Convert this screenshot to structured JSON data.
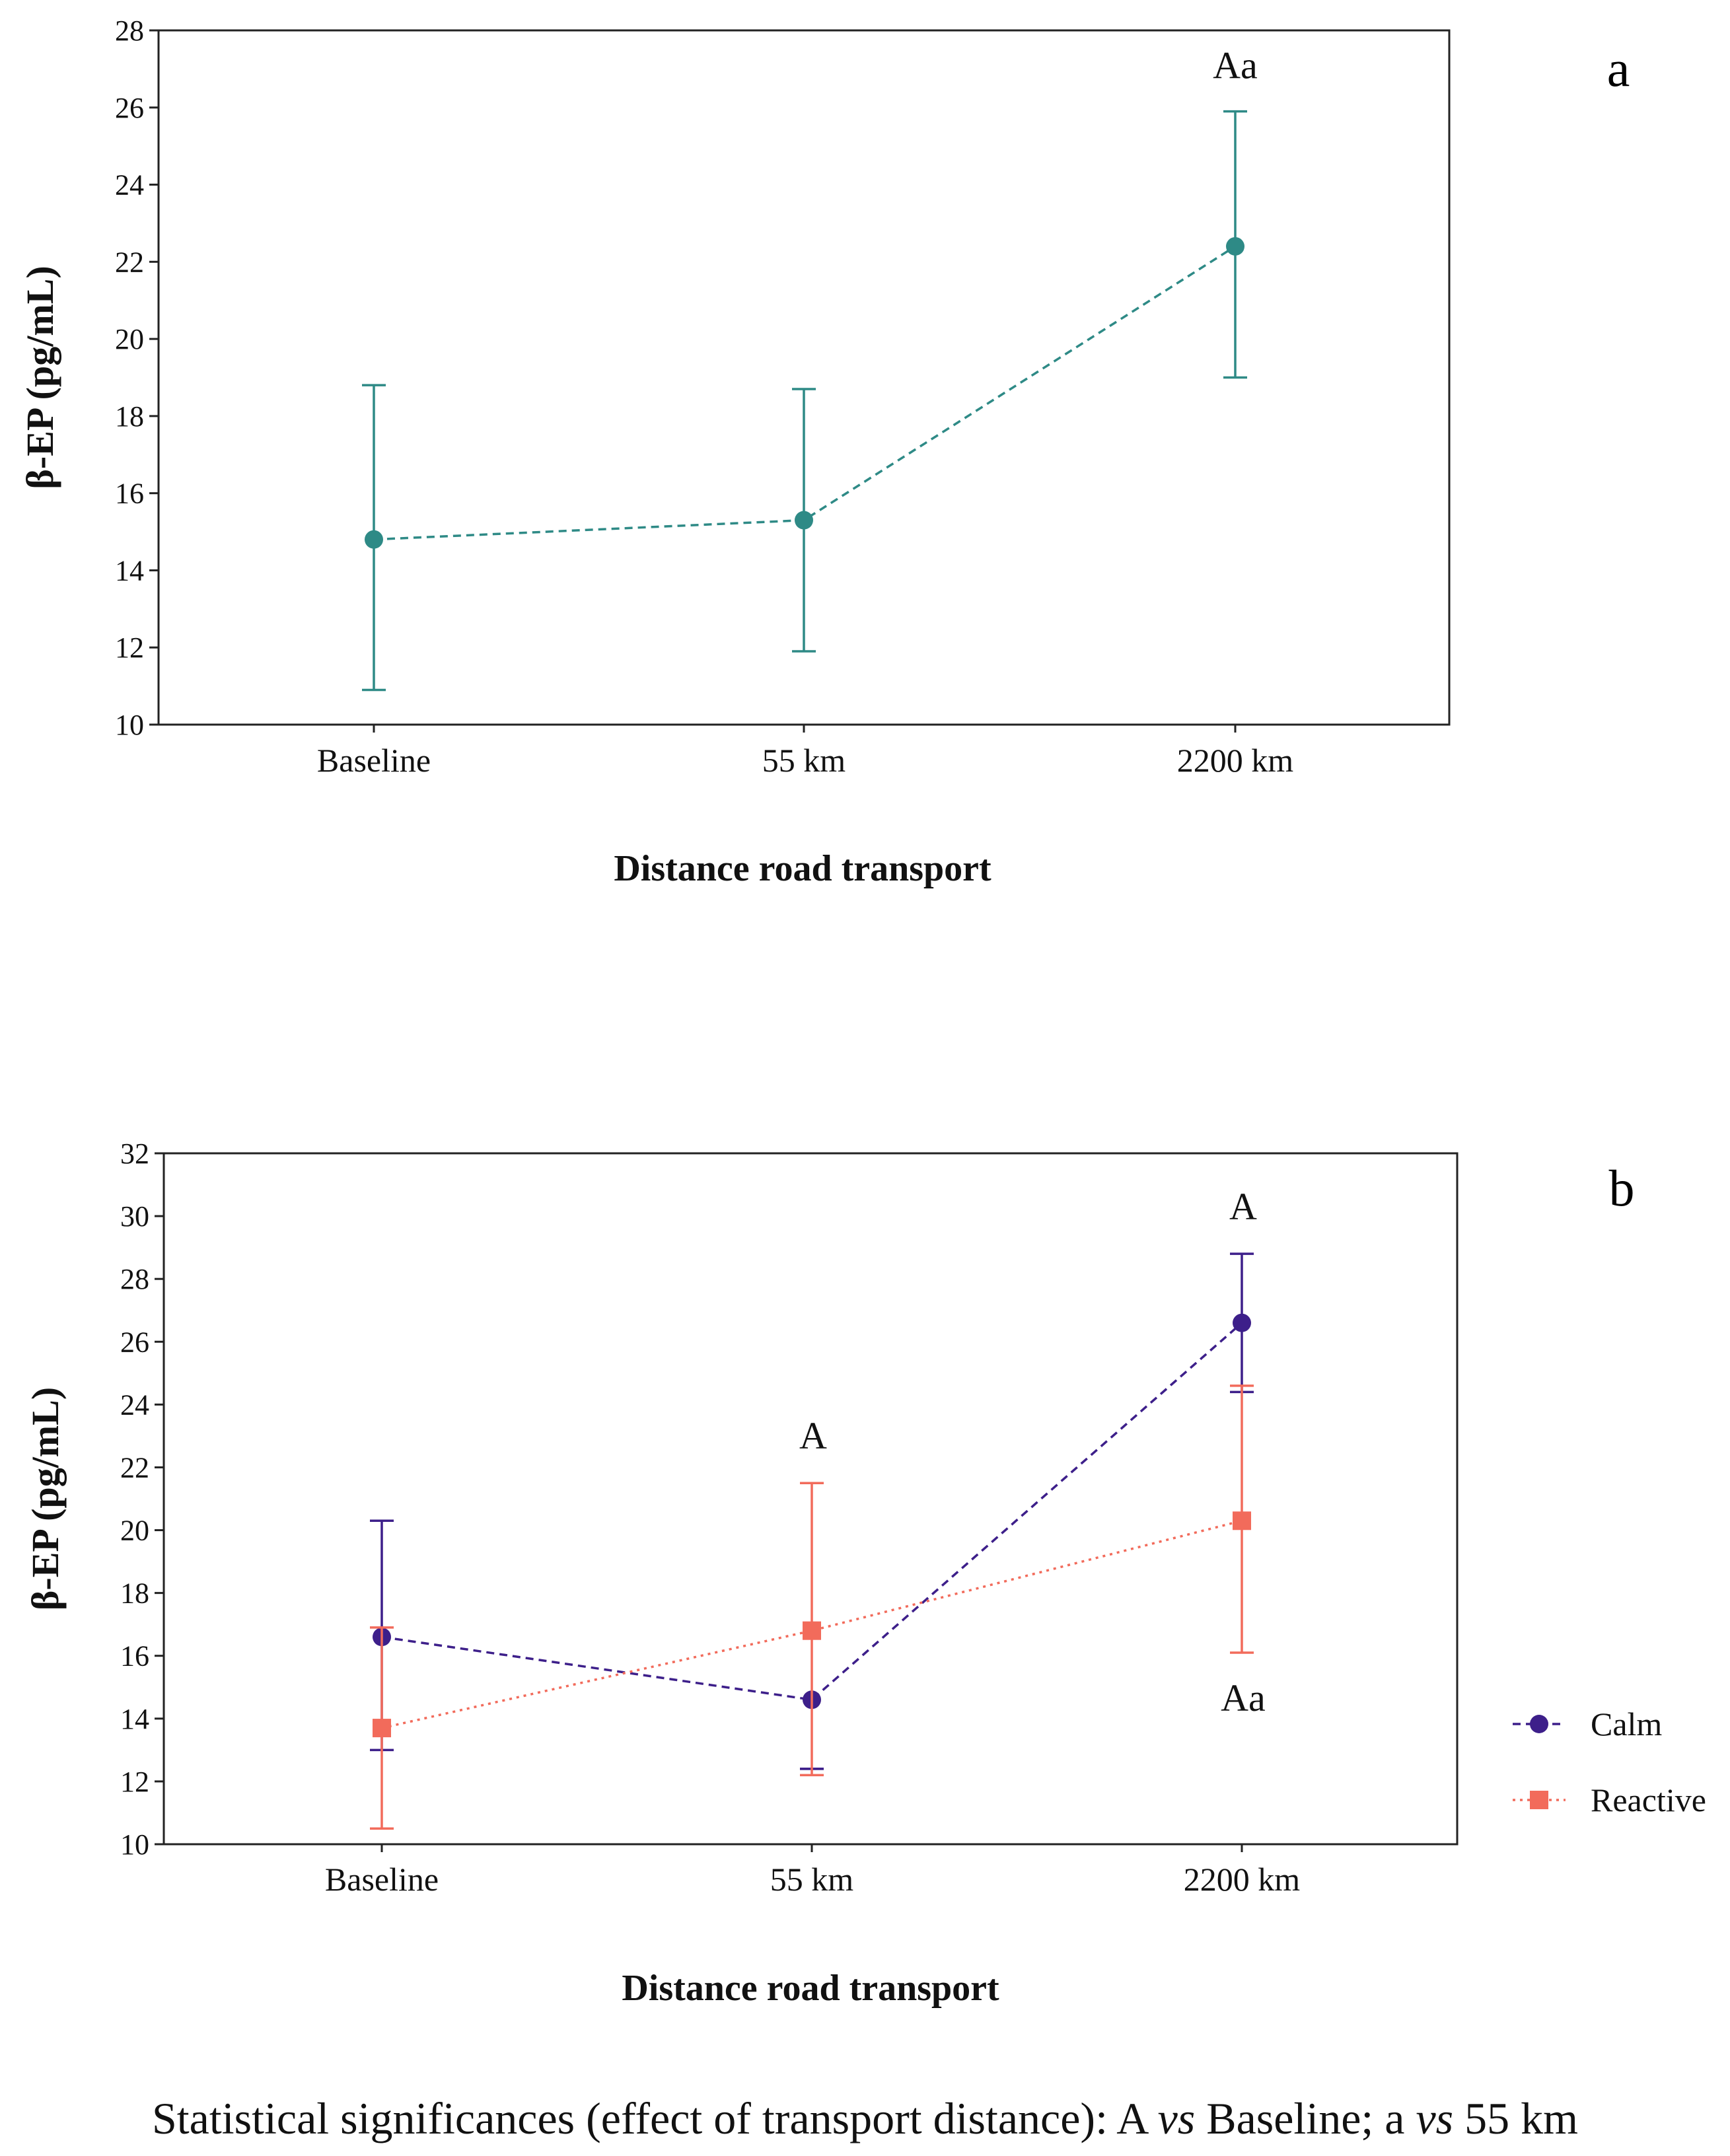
{
  "chart_data": [
    {
      "panel": "a",
      "type": "line",
      "categories": [
        "Baseline",
        "55 km",
        "2200 km"
      ],
      "xlabel": "Distance road transport",
      "ylabel": "β-EP (pg/mL)",
      "ylim": [
        10,
        28
      ],
      "yticks": [
        10,
        12,
        14,
        16,
        18,
        20,
        22,
        24,
        26,
        28
      ],
      "grid": false,
      "series": [
        {
          "name": "β-EP",
          "color": "#2e8a86",
          "marker": "circle",
          "line_style": "dashed",
          "values": [
            14.8,
            15.3,
            22.4
          ],
          "err_low": [
            10.9,
            11.9,
            19.0
          ],
          "err_high": [
            18.8,
            18.7,
            25.9
          ],
          "annotations": [
            "",
            "",
            "Aa"
          ]
        }
      ]
    },
    {
      "panel": "b",
      "type": "line",
      "categories": [
        "Baseline",
        "55 km",
        "2200 km"
      ],
      "xlabel": "Distance road transport",
      "ylabel": "β-EP (pg/mL)",
      "ylim": [
        10,
        32
      ],
      "yticks": [
        10,
        12,
        14,
        16,
        18,
        20,
        22,
        24,
        26,
        28,
        30,
        32
      ],
      "grid": false,
      "legend": "right",
      "series": [
        {
          "name": "Calm",
          "color": "#3d1f8a",
          "marker": "circle",
          "line_style": "dashed",
          "values": [
            16.6,
            14.6,
            26.6
          ],
          "err_low": [
            13.0,
            12.4,
            24.4
          ],
          "err_high": [
            20.3,
            12.4,
            28.8
          ],
          "annotations": [
            "",
            "",
            "A"
          ]
        },
        {
          "name": "Reactive",
          "color": "#f26b5b",
          "marker": "square",
          "line_style": "dotted",
          "values": [
            13.7,
            16.8,
            20.3
          ],
          "err_low": [
            10.5,
            12.2,
            16.1
          ],
          "err_high": [
            16.9,
            21.5,
            24.6
          ],
          "annotations": [
            "",
            "A",
            "Aa"
          ]
        }
      ]
    }
  ],
  "caption": {
    "part1": "Statistical significances (effect of transport distance): A ",
    "vs1": "vs",
    "part2": " Baseline; a ",
    "vs2": "vs",
    "part3": " 55 km"
  }
}
